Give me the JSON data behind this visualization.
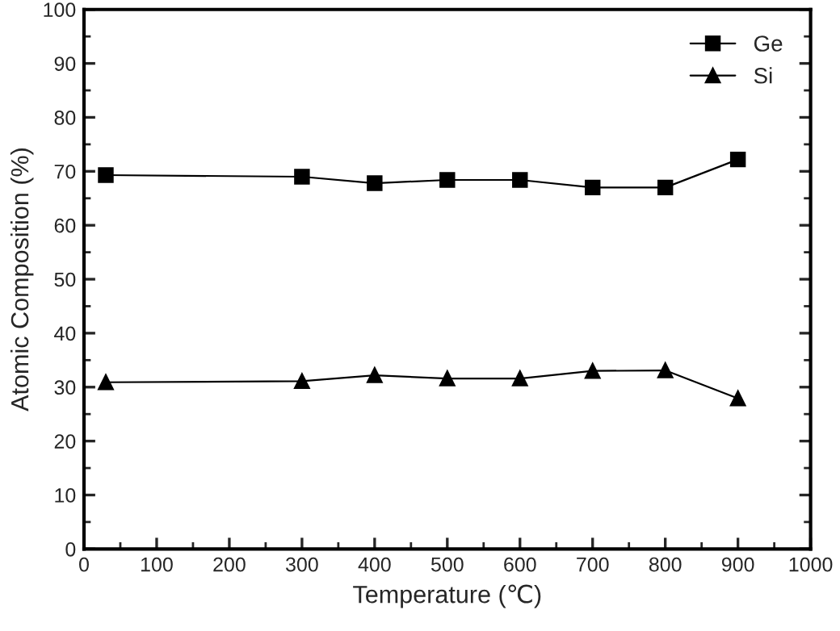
{
  "chart_data": {
    "type": "line",
    "xlabel": "Temperature (℃)",
    "ylabel": "Atomic Composition (%)",
    "x": [
      30,
      300,
      400,
      500,
      600,
      700,
      800,
      900
    ],
    "series": [
      {
        "name": "Ge",
        "color": "#000000",
        "marker": "square",
        "values": [
          69.3,
          69.0,
          67.8,
          68.4,
          68.4,
          67.0,
          67.0,
          72.2
        ]
      },
      {
        "name": "Si",
        "color": "#000000",
        "marker": "triangle",
        "values": [
          30.9,
          31.1,
          32.2,
          31.6,
          31.6,
          33.0,
          33.1,
          27.9
        ]
      }
    ],
    "xlim": [
      0,
      1000
    ],
    "xticks": [
      0,
      100,
      200,
      300,
      400,
      500,
      600,
      700,
      800,
      900,
      1000
    ],
    "ylim": [
      0,
      100
    ],
    "yticks": [
      0,
      10,
      20,
      30,
      40,
      50,
      60,
      70,
      80,
      90,
      100
    ],
    "grid": false,
    "legend": "top right",
    "line_style": "solid"
  }
}
